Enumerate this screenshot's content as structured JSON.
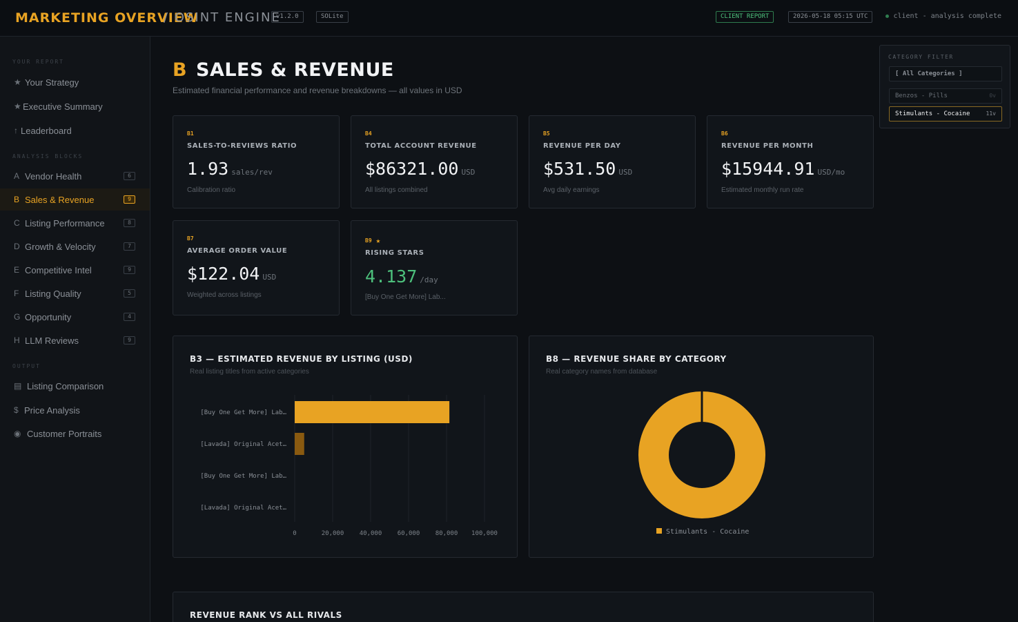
{
  "header": {
    "brand": "MARKETING OVERVIEW",
    "product": "/ OSINT ENGINE",
    "version": "v1.2.0",
    "edition": "SOLite",
    "report_badge": "CLIENT REPORT",
    "timestamp": "2026-05-18 05:15 UTC",
    "status": "client - analysis complete"
  },
  "sidebar": {
    "report_label": "YOUR REPORT",
    "report_items": [
      {
        "icon": "★",
        "label": "Your Strategy"
      },
      {
        "icon": "★",
        "label": "Executive Summary"
      },
      {
        "icon": "↑",
        "label": "Leaderboard"
      }
    ],
    "blocks_label": "ANALYSIS BLOCKS",
    "block_items": [
      {
        "key": "A",
        "label": "Vendor Health",
        "count": "6"
      },
      {
        "key": "B",
        "label": "Sales & Revenue",
        "count": "9"
      },
      {
        "key": "C",
        "label": "Listing Performance",
        "count": "8"
      },
      {
        "key": "D",
        "label": "Growth & Velocity",
        "count": "7"
      },
      {
        "key": "E",
        "label": "Competitive Intel",
        "count": "9"
      },
      {
        "key": "F",
        "label": "Listing Quality",
        "count": "5"
      },
      {
        "key": "G",
        "label": "Opportunity",
        "count": "4"
      },
      {
        "key": "H",
        "label": "LLM Reviews",
        "count": "9"
      }
    ],
    "output_label": "OUTPUT",
    "output_items": [
      {
        "icon": "▤",
        "label": "Listing Comparison"
      },
      {
        "icon": "$",
        "label": "Price Analysis"
      },
      {
        "icon": "◉",
        "label": "Customer Portraits"
      }
    ]
  },
  "section": {
    "letter": "B",
    "title": "SALES & REVENUE",
    "subtitle": "Estimated financial performance and revenue breakdowns — all values in USD"
  },
  "metrics": [
    {
      "id": "B1",
      "label": "SALES-TO-REVIEWS RATIO",
      "value": "1.93",
      "unit": "sales/rev",
      "note": "Calibration ratio"
    },
    {
      "id": "B4",
      "label": "TOTAL ACCOUNT REVENUE",
      "value": "$86321.00",
      "unit": "USD",
      "note": "All listings combined"
    },
    {
      "id": "B5",
      "label": "REVENUE PER DAY",
      "value": "$531.50",
      "unit": "USD",
      "note": "Avg daily earnings"
    },
    {
      "id": "B6",
      "label": "REVENUE PER MONTH",
      "value": "$15944.91",
      "unit": "USD/mo",
      "note": "Estimated monthly run rate"
    },
    {
      "id": "B7",
      "label": "AVERAGE ORDER VALUE",
      "value": "$122.04",
      "unit": "USD",
      "note": "Weighted across listings"
    },
    {
      "id": "B9",
      "label": "RISING STARS",
      "value": "4.137",
      "unit": "/day",
      "note": "[Buy One Get More] Lab..."
    }
  ],
  "bar_panel": {
    "title": "B3 — ESTIMATED REVENUE BY LISTING (USD)",
    "subtitle": "Real listing titles from active categories"
  },
  "pie_panel": {
    "title": "B8 — REVENUE SHARE BY CATEGORY",
    "subtitle": "Real category names from database"
  },
  "rank_panel": {
    "title": "REVENUE RANK VS ALL RIVALS"
  },
  "filter": {
    "title": "CATEGORY FILTER",
    "all_label": "[ All Categories ]",
    "options": [
      {
        "label": "Benzos - Pills",
        "count": "0v"
      },
      {
        "label": "Stimulants - Cocaine",
        "count": "11v"
      }
    ]
  },
  "colors": {
    "accent": "#e8a323",
    "positive": "#4dc07c",
    "bar_dim": "#8a5a10"
  },
  "chart_data": [
    {
      "type": "bar",
      "orientation": "horizontal",
      "categories": [
        "[Buy One Get More] Lab…",
        "[Lavada] Original Acet…",
        "[Buy One Get More] Lab…",
        "[Lavada] Original Acet…"
      ],
      "values": [
        81500,
        5000,
        0,
        0
      ],
      "xlim": [
        0,
        100000
      ],
      "xticks": [
        "0",
        "20,000",
        "40,000",
        "60,000",
        "80,000",
        "100,000"
      ],
      "grid": true
    },
    {
      "type": "pie",
      "style": "donut",
      "slices": [
        {
          "name": "Stimulants - Cocaine",
          "value": 100
        }
      ],
      "legend": "bottom"
    }
  ]
}
